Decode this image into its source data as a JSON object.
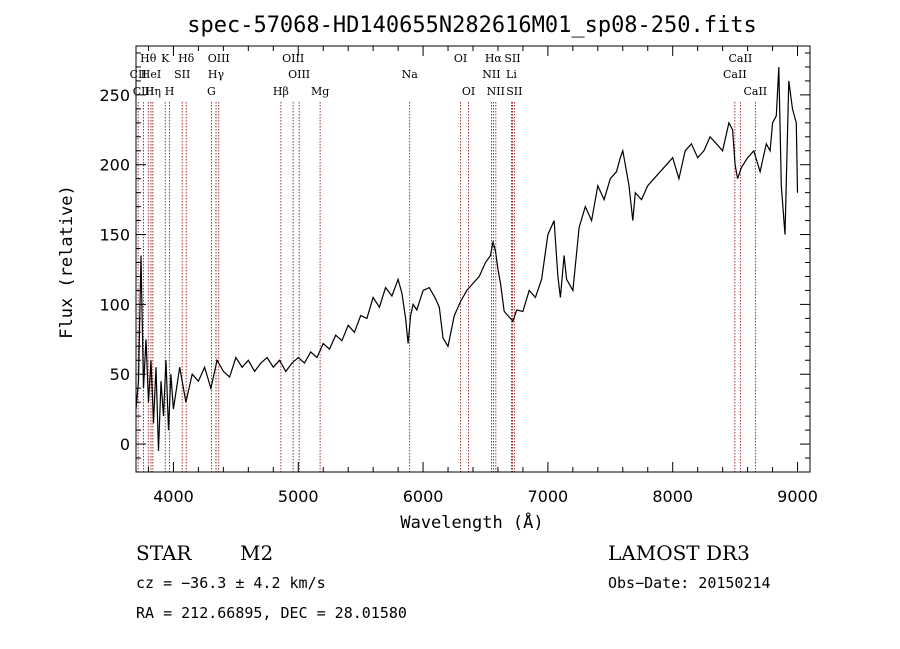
{
  "chart_data": {
    "type": "line",
    "title": "spec-57068-HD140655N282616M01_sp08-250.fits",
    "xlabel": "Wavelength (Å)",
    "ylabel": "Flux (relative)",
    "xlim": [
      3700,
      9100
    ],
    "ylim": [
      -20,
      285
    ],
    "xticks": [
      4000,
      5000,
      6000,
      7000,
      8000,
      9000
    ],
    "yticks": [
      0,
      50,
      100,
      150,
      200,
      250
    ],
    "series": [
      {
        "name": "flux",
        "color": "#000000",
        "x": [
          3700,
          3720,
          3740,
          3760,
          3780,
          3800,
          3820,
          3840,
          3860,
          3880,
          3900,
          3920,
          3940,
          3960,
          3980,
          4000,
          4050,
          4100,
          4150,
          4200,
          4250,
          4300,
          4350,
          4400,
          4450,
          4500,
          4550,
          4600,
          4650,
          4700,
          4750,
          4800,
          4850,
          4900,
          4950,
          5000,
          5050,
          5100,
          5150,
          5200,
          5250,
          5300,
          5350,
          5400,
          5450,
          5500,
          5550,
          5600,
          5650,
          5700,
          5750,
          5800,
          5830,
          5860,
          5880,
          5900,
          5920,
          5950,
          6000,
          6050,
          6100,
          6130,
          6160,
          6200,
          6250,
          6300,
          6350,
          6400,
          6450,
          6500,
          6540,
          6560,
          6580,
          6600,
          6620,
          6650,
          6680,
          6700,
          6720,
          6750,
          6800,
          6850,
          6900,
          6950,
          7000,
          7050,
          7080,
          7100,
          7130,
          7150,
          7200,
          7250,
          7300,
          7350,
          7400,
          7450,
          7500,
          7550,
          7580,
          7600,
          7620,
          7650,
          7680,
          7700,
          7750,
          7800,
          7850,
          7900,
          7950,
          8000,
          8050,
          8100,
          8150,
          8200,
          8250,
          8300,
          8350,
          8400,
          8450,
          8480,
          8500,
          8520,
          8550,
          8600,
          8650,
          8700,
          8750,
          8780,
          8800,
          8830,
          8850,
          8870,
          8900,
          8930,
          8960,
          8990,
          9000
        ],
        "y": [
          25,
          45,
          135,
          40,
          75,
          30,
          60,
          15,
          55,
          -5,
          45,
          20,
          60,
          10,
          50,
          25,
          55,
          30,
          50,
          45,
          55,
          40,
          60,
          52,
          48,
          62,
          55,
          60,
          52,
          58,
          62,
          55,
          60,
          52,
          58,
          62,
          58,
          66,
          62,
          72,
          68,
          78,
          74,
          85,
          80,
          92,
          90,
          105,
          98,
          112,
          106,
          118,
          108,
          90,
          72,
          92,
          100,
          96,
          110,
          112,
          104,
          98,
          76,
          70,
          92,
          102,
          110,
          115,
          120,
          130,
          135,
          145,
          138,
          125,
          115,
          95,
          92,
          90,
          88,
          96,
          95,
          110,
          105,
          118,
          150,
          160,
          120,
          105,
          135,
          118,
          110,
          155,
          170,
          160,
          185,
          175,
          190,
          195,
          205,
          210,
          200,
          185,
          160,
          180,
          175,
          185,
          190,
          195,
          200,
          205,
          190,
          210,
          215,
          205,
          210,
          220,
          215,
          210,
          230,
          225,
          200,
          190,
          198,
          205,
          210,
          195,
          215,
          210,
          230,
          235,
          270,
          185,
          150,
          260,
          240,
          230,
          180
        ],
        "line_width": 1.2
      }
    ],
    "emission_lines": [
      {
        "label": "CII",
        "row": 2,
        "markers": [
          3717
        ]
      },
      {
        "label": "Hθ",
        "row": 1,
        "markers": [
          3798
        ]
      },
      {
        "label": "HeI",
        "row": 2,
        "markers": [
          3820
        ]
      },
      {
        "label": "Hη",
        "row": 3,
        "markers": [
          3835
        ]
      },
      {
        "label": "CIII",
        "row": 3,
        "markers": [
          3760
        ]
      },
      {
        "label": "K",
        "row": 1,
        "markers": [
          3934
        ]
      },
      {
        "label": "H",
        "row": 3,
        "markers": [
          3969
        ]
      },
      {
        "label": "SII",
        "row": 2,
        "markers": [
          4070
        ]
      },
      {
        "label": "Hδ",
        "row": 1,
        "markers": [
          4102
        ]
      },
      {
        "label": "OIII",
        "row": 1,
        "markers": [
          4363
        ]
      },
      {
        "label": "Hγ",
        "row": 2,
        "markers": [
          4341
        ]
      },
      {
        "label": "G",
        "row": 3,
        "markers": [
          4304
        ]
      },
      {
        "label": "Hβ",
        "row": 3,
        "markers": [
          4861
        ]
      },
      {
        "label": "OIII",
        "row": 1,
        "markers": [
          4959
        ]
      },
      {
        "label": "OIII",
        "row": 2,
        "markers": [
          5007
        ]
      },
      {
        "label": "Mg",
        "row": 3,
        "markers": [
          5175
        ]
      },
      {
        "label": "Na",
        "row": 2,
        "markers": [
          5893
        ]
      },
      {
        "label": "OI",
        "row": 1,
        "markers": [
          6300
        ]
      },
      {
        "label": "OI",
        "row": 3,
        "markers": [
          6364
        ]
      },
      {
        "label": "Hα",
        "row": 1,
        "markers": [
          6563
        ]
      },
      {
        "label": "NII",
        "row": 2,
        "markers": [
          6548
        ]
      },
      {
        "label": "NII",
        "row": 3,
        "markers": [
          6583
        ]
      },
      {
        "label": "SII",
        "row": 1,
        "markers": [
          6716
        ]
      },
      {
        "label": "Li",
        "row": 2,
        "markers": [
          6708
        ]
      },
      {
        "label": "SII",
        "row": 3,
        "markers": [
          6731
        ]
      },
      {
        "label": "CaII",
        "row": 1,
        "markers": [
          8542
        ]
      },
      {
        "label": "CaII",
        "row": 2,
        "markers": [
          8498
        ]
      },
      {
        "label": "CaII",
        "row": 3,
        "markers": [
          8662
        ]
      }
    ],
    "line_color": "#8b0000"
  },
  "info": {
    "class": "STAR",
    "subclass": "M2",
    "survey": "LAMOST DR3",
    "cz": "cz = −36.3 ± 4.2 km/s",
    "obs_date": "Obs−Date: 20150214",
    "coords": "RA = 212.66895, DEC =  28.01580"
  }
}
